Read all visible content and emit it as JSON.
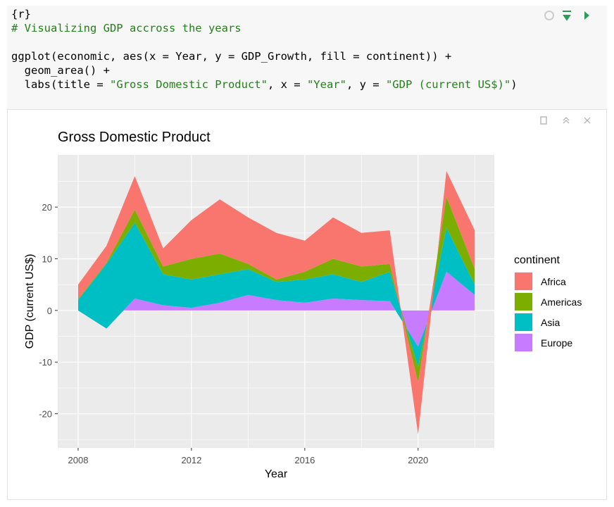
{
  "code": {
    "lines": [
      [
        "{r}"
      ],
      [
        "# Visualizing GDP accross the years"
      ],
      [
        "ggplot(economic, aes(x = Year, y = GDP_Growth, fill = continent)) +"
      ],
      [
        "  geom_area() +"
      ],
      [
        "  labs(title = ",
        "\"Gross Domestic Product\"",
        ", x = ",
        "\"Year\"",
        ", y = ",
        "\"GDP (current US$)\"",
        ")"
      ]
    ]
  },
  "chart_data": {
    "type": "area",
    "stacked": true,
    "title": "Gross Domestic Product",
    "x_label": "Year",
    "y_label": "GDP (current US$)",
    "legend_title": "continent",
    "legend": "right",
    "grid": true,
    "x": [
      2008,
      2009,
      2010,
      2011,
      2012,
      2013,
      2014,
      2015,
      2016,
      2017,
      2018,
      2019,
      2020,
      2021,
      2022
    ],
    "series": [
      {
        "name": "Africa",
        "color": "#F8766D",
        "values": [
          2.8,
          3.3,
          6.5,
          3.5,
          7.5,
          10.5,
          9,
          9,
          6,
          8,
          6.5,
          6.5,
          -10,
          5,
          7.5
        ]
      },
      {
        "name": "Americas",
        "color": "#7CAE00",
        "values": [
          0.2,
          0.2,
          2.5,
          1.5,
          4,
          4,
          1,
          0.5,
          1.5,
          3,
          3,
          1.5,
          -3,
          6,
          3
        ]
      },
      {
        "name": "Asia",
        "color": "#00BFC4",
        "values": [
          2,
          12.5,
          14.7,
          6,
          5.5,
          5.5,
          5,
          3.5,
          4.5,
          4.7,
          3.5,
          5.7,
          -4,
          8.5,
          2
        ]
      },
      {
        "name": "Europe",
        "color": "#C77CFF",
        "values": [
          0,
          -3.5,
          2.3,
          1,
          0.5,
          1.5,
          3,
          2,
          1.5,
          2.3,
          2,
          1.8,
          -7,
          7.5,
          3
        ]
      }
    ],
    "xlim": [
      2007.28,
      2022.69
    ],
    "xticks": [
      2008,
      2012,
      2016,
      2020
    ],
    "ylim": [
      -26.6,
      30.1
    ],
    "yticks": [
      -20,
      -10,
      0,
      10,
      20
    ]
  }
}
